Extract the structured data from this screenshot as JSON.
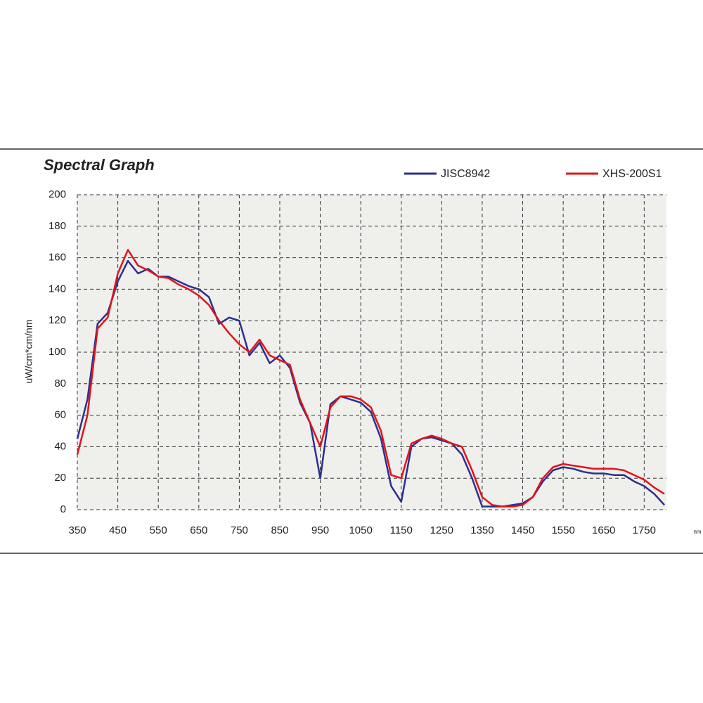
{
  "chart_data": {
    "type": "line",
    "title": "Spectral Graph",
    "x_label": "nm",
    "y_label": "uW/cm*cm/nm",
    "x": [
      350,
      375,
      400,
      425,
      450,
      475,
      500,
      525,
      550,
      575,
      600,
      625,
      650,
      675,
      700,
      725,
      750,
      775,
      800,
      825,
      850,
      875,
      900,
      925,
      950,
      975,
      1000,
      1025,
      1050,
      1075,
      1100,
      1125,
      1150,
      1175,
      1200,
      1225,
      1250,
      1275,
      1300,
      1325,
      1350,
      1375,
      1400,
      1425,
      1450,
      1475,
      1500,
      1525,
      1550,
      1575,
      1600,
      1625,
      1650,
      1675,
      1700,
      1725,
      1750,
      1775,
      1800
    ],
    "series": [
      {
        "name": "JISC8942",
        "color": "#2b2f8f",
        "values": [
          45,
          70,
          118,
          125,
          145,
          158,
          150,
          153,
          148,
          148,
          145,
          142,
          140,
          135,
          118,
          122,
          120,
          98,
          106,
          93,
          98,
          90,
          68,
          55,
          20,
          67,
          72,
          70,
          68,
          62,
          45,
          15,
          5,
          40,
          45,
          46,
          44,
          42,
          35,
          20,
          2,
          2,
          2,
          3,
          4,
          8,
          18,
          25,
          27,
          26,
          24,
          23,
          23,
          22,
          22,
          18,
          15,
          10,
          3
        ]
      },
      {
        "name": "XHS-200S1",
        "color": "#e0141a",
        "values": [
          35,
          60,
          115,
          122,
          150,
          165,
          155,
          152,
          148,
          147,
          143,
          140,
          136,
          130,
          120,
          112,
          105,
          100,
          108,
          98,
          95,
          92,
          70,
          55,
          40,
          65,
          72,
          72,
          70,
          65,
          50,
          22,
          20,
          42,
          45,
          47,
          45,
          42,
          40,
          25,
          8,
          3,
          2,
          2,
          3,
          8,
          20,
          27,
          29,
          28,
          27,
          26,
          26,
          26,
          25,
          22,
          19,
          14,
          10
        ]
      }
    ],
    "xlim": [
      350,
      1805
    ],
    "ylim": [
      0,
      200
    ],
    "xticks": [
      350,
      450,
      550,
      650,
      750,
      850,
      950,
      1050,
      1150,
      1250,
      1350,
      1450,
      1550,
      1650,
      1750
    ],
    "yticks": [
      0,
      20,
      40,
      60,
      80,
      100,
      120,
      140,
      160,
      180,
      200
    ],
    "grid": true
  }
}
